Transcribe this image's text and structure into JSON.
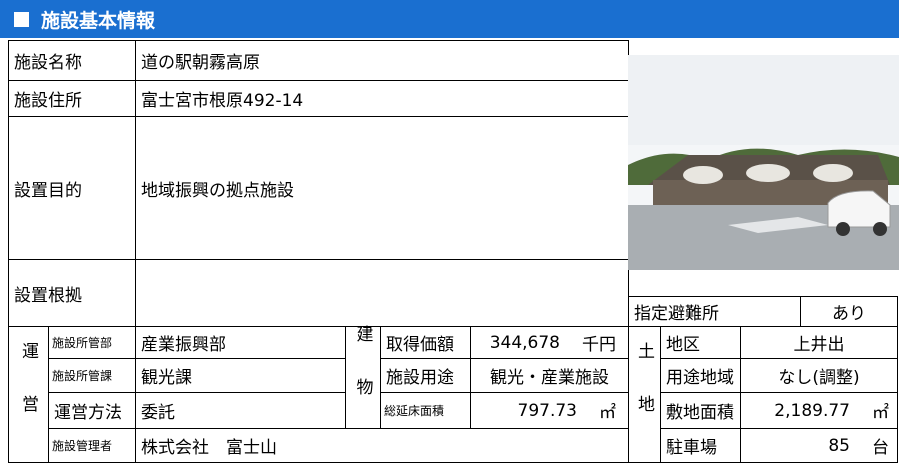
{
  "header": {
    "title": "施設基本情報"
  },
  "info": {
    "rows": [
      {
        "label": "施設名称",
        "value": "道の駅朝霧高原"
      },
      {
        "label": "施設住所",
        "value": "富士宮市根原492-14"
      },
      {
        "label": "設置目的",
        "value": "地域振興の拠点施設"
      },
      {
        "label": "設置根拠",
        "value": ""
      }
    ]
  },
  "shelter": {
    "label": "指定避難所",
    "value": "あり"
  },
  "operation": {
    "group": "運営",
    "rows": [
      {
        "label": "施設所管部",
        "value": "産業振興部"
      },
      {
        "label": "施設所管課",
        "value": "観光課"
      },
      {
        "label": "運営方法",
        "value": "委託"
      },
      {
        "label": "施設管理者",
        "value": "株式会社　富士山"
      }
    ]
  },
  "building": {
    "group": "建物",
    "rows": [
      {
        "label": "取得価額",
        "value": "344,678",
        "unit": "千円"
      },
      {
        "label": "施設用途",
        "value": "観光・産業施設"
      },
      {
        "label": "総延床面積",
        "value": "797.73",
        "unit": "㎡"
      }
    ]
  },
  "land": {
    "group": "土地",
    "rows": [
      {
        "label": "地区",
        "value": "上井出"
      },
      {
        "label": "用途地域",
        "value": "なし(調整)"
      },
      {
        "label": "敷地面積",
        "value": "2,189.77",
        "unit": "㎡"
      },
      {
        "label": "駐車場",
        "value": "85",
        "unit": "台"
      }
    ]
  }
}
